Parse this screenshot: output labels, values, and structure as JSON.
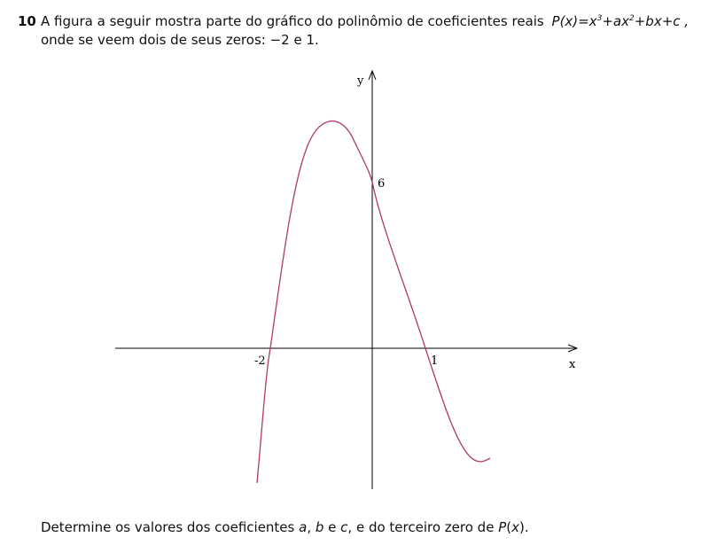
{
  "question": {
    "number": "10",
    "intro": "A figura a seguir mostra parte do gráfico do polinômio de coeficientes reais",
    "formula": [
      "P(x)",
      "=x",
      "3",
      "+ax",
      "2",
      "+bx+c ,"
    ],
    "intro_line2": "onde se veem dois de seus zeros: −2 e 1.",
    "graph": {
      "y_axis_label": "y",
      "x_axis_label": "x",
      "labels": [
        "-2",
        "1",
        "6"
      ]
    },
    "prompt": [
      "Determine os valores dos coeficientes ",
      "a",
      ", ",
      "b",
      " e ",
      "c",
      ", e do terceiro zero de ",
      "P",
      "(",
      "x",
      ")."
    ]
  }
}
